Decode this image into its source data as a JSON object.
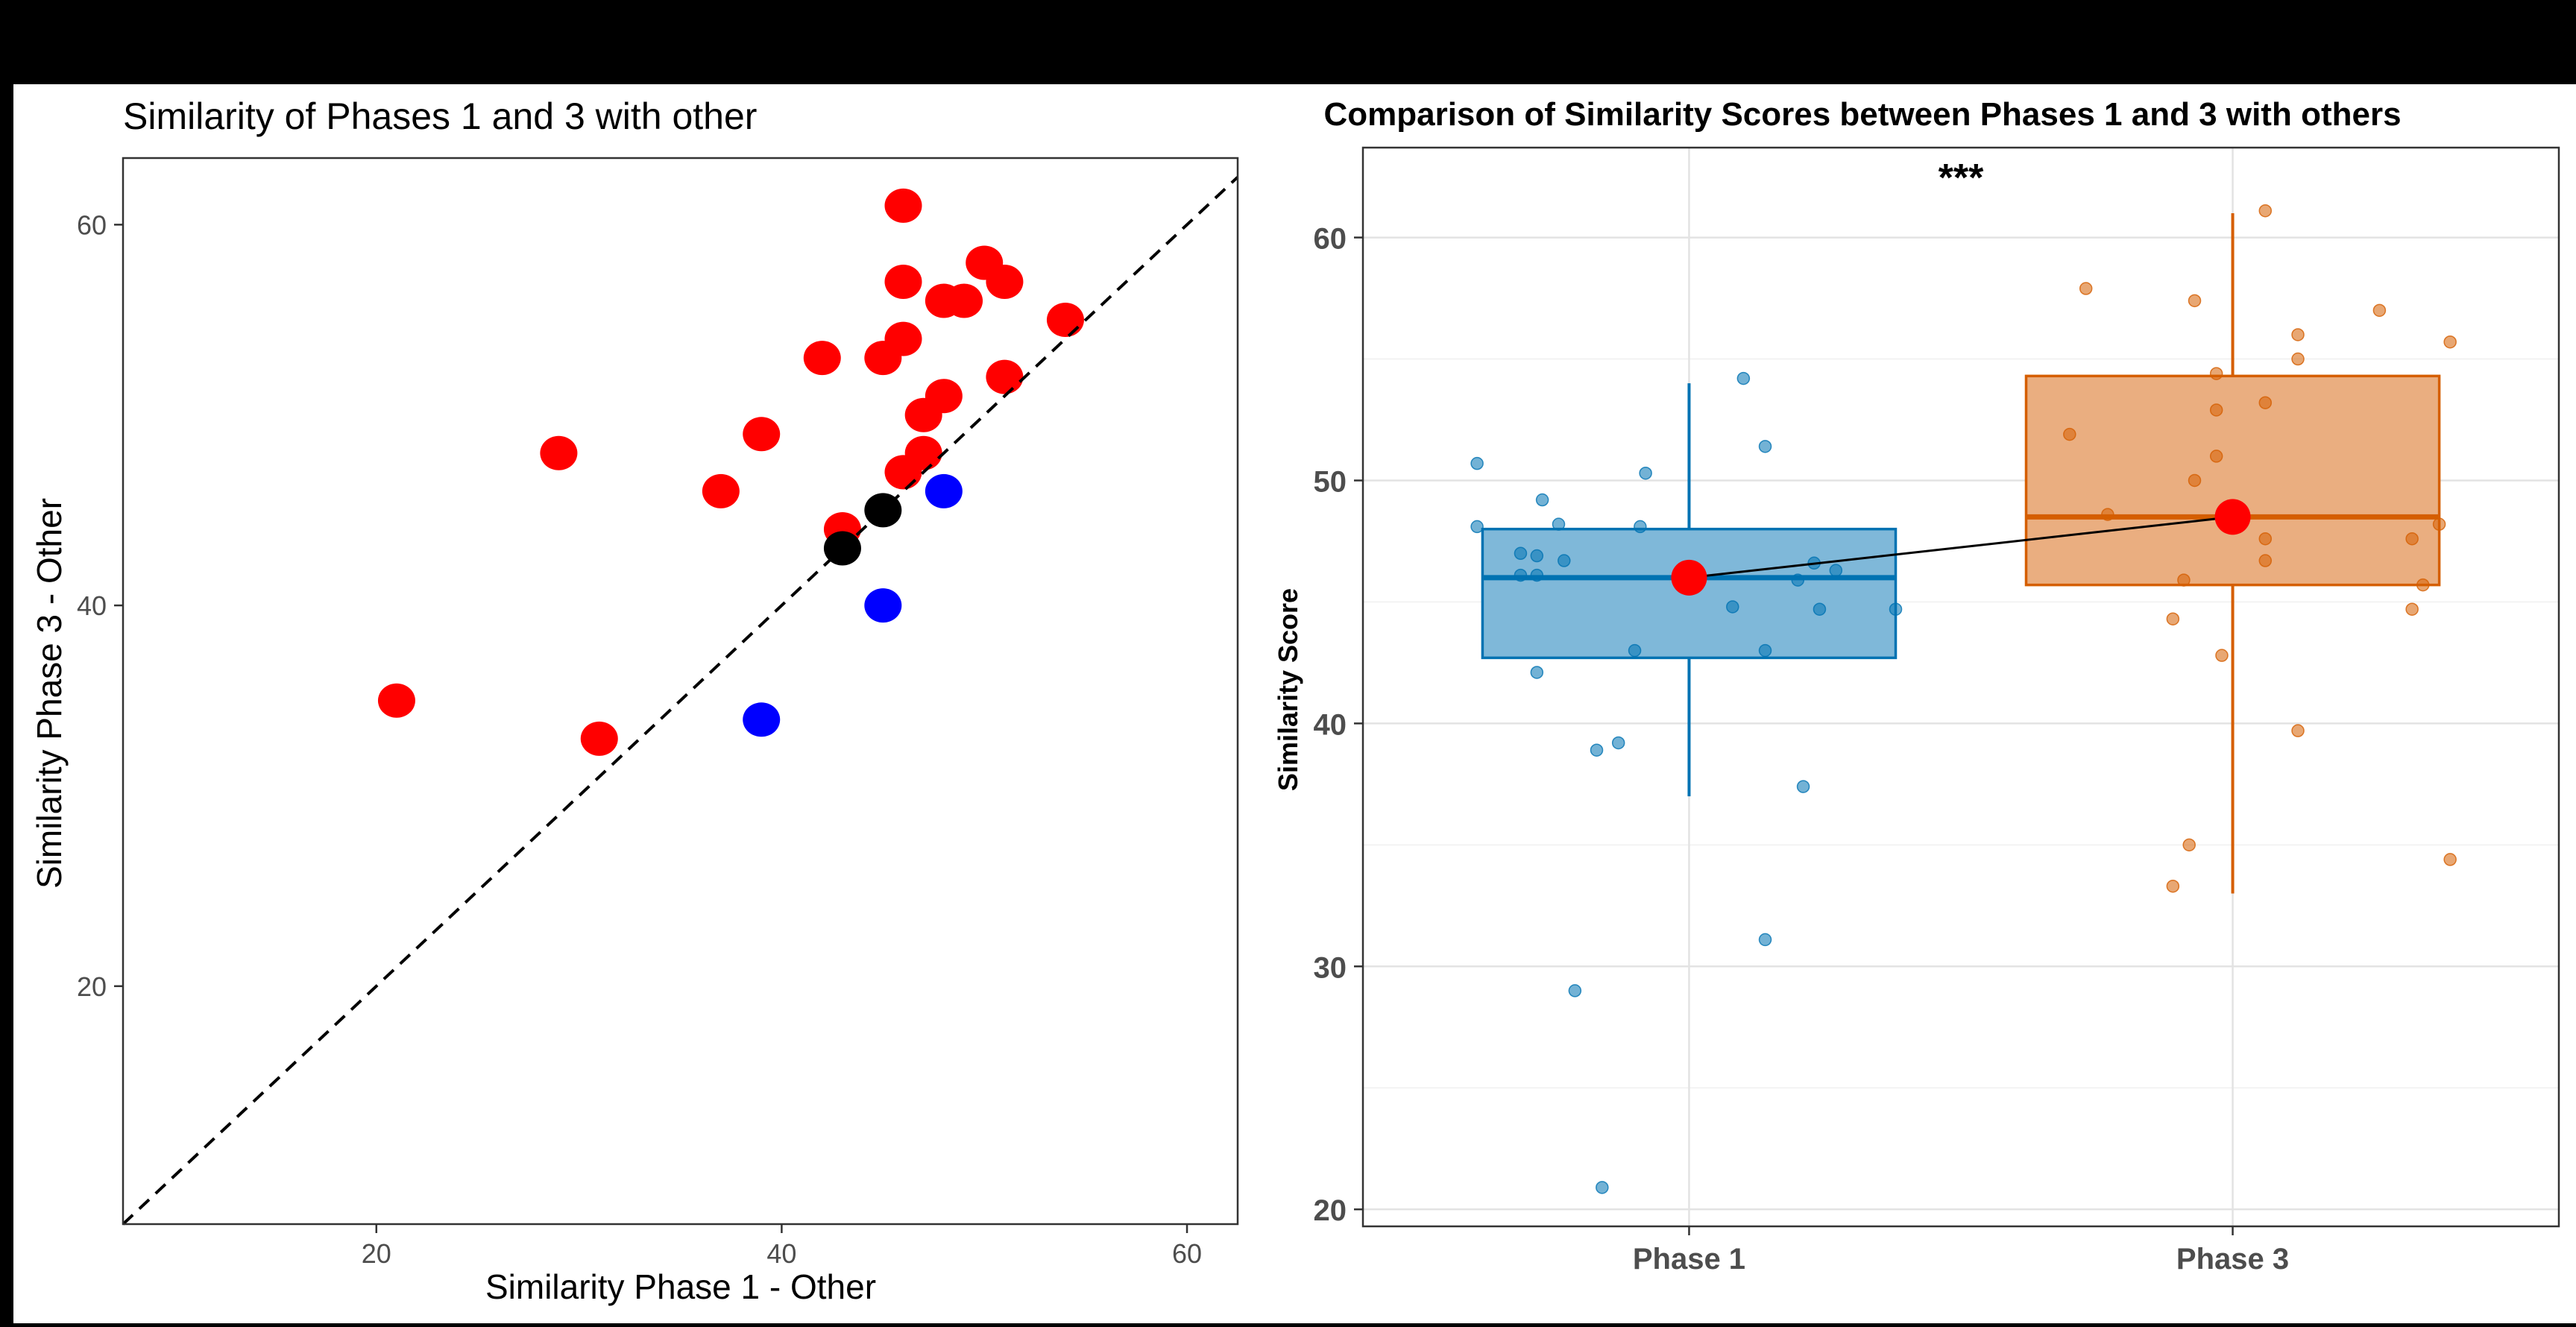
{
  "chart_data": [
    {
      "type": "scatter",
      "title": "Similarity of Phases 1 and 3 with other",
      "xlabel": "Similarity Phase 1 - Other",
      "ylabel": "Similarity Phase 3 - Other",
      "xlim": [
        7.5,
        62.5
      ],
      "ylim": [
        7.5,
        63.5
      ],
      "xticks": [
        20,
        40,
        60
      ],
      "yticks": [
        20,
        40,
        60
      ],
      "reference_line": "y = x, dashed",
      "grid": false,
      "colors": {
        "above": "#ff0000",
        "below": "#0000ff",
        "equal": "#000000"
      },
      "points": [
        {
          "x": 21,
          "y": 35,
          "color": "#ff0000"
        },
        {
          "x": 29,
          "y": 48,
          "color": "#ff0000"
        },
        {
          "x": 31,
          "y": 33,
          "color": "#ff0000"
        },
        {
          "x": 37,
          "y": 46,
          "color": "#ff0000"
        },
        {
          "x": 39,
          "y": 49,
          "color": "#ff0000"
        },
        {
          "x": 42,
          "y": 53,
          "color": "#ff0000"
        },
        {
          "x": 43,
          "y": 44,
          "color": "#ff0000"
        },
        {
          "x": 45,
          "y": 53,
          "color": "#ff0000"
        },
        {
          "x": 46,
          "y": 61,
          "color": "#ff0000"
        },
        {
          "x": 46,
          "y": 57,
          "color": "#ff0000"
        },
        {
          "x": 46,
          "y": 54,
          "color": "#ff0000"
        },
        {
          "x": 46,
          "y": 47,
          "color": "#ff0000"
        },
        {
          "x": 47,
          "y": 50,
          "color": "#ff0000"
        },
        {
          "x": 47,
          "y": 48,
          "color": "#ff0000"
        },
        {
          "x": 48,
          "y": 56,
          "color": "#ff0000"
        },
        {
          "x": 48,
          "y": 51,
          "color": "#ff0000"
        },
        {
          "x": 49,
          "y": 56,
          "color": "#ff0000"
        },
        {
          "x": 50,
          "y": 58,
          "color": "#ff0000"
        },
        {
          "x": 51,
          "y": 57,
          "color": "#ff0000"
        },
        {
          "x": 51,
          "y": 52,
          "color": "#ff0000"
        },
        {
          "x": 54,
          "y": 55,
          "color": "#ff0000"
        },
        {
          "x": 39,
          "y": 34,
          "color": "#0000ff"
        },
        {
          "x": 45,
          "y": 40,
          "color": "#0000ff"
        },
        {
          "x": 48,
          "y": 46,
          "color": "#0000ff"
        },
        {
          "x": 43,
          "y": 43,
          "color": "#000000"
        },
        {
          "x": 45,
          "y": 45,
          "color": "#000000"
        }
      ]
    },
    {
      "type": "box",
      "title": "Comparison of Similarity Scores between Phases 1 and 3 with others",
      "xlabel": "",
      "ylabel": "Similarity Score",
      "ylim": [
        19.3,
        63.7
      ],
      "yticks": [
        20,
        30,
        40,
        50,
        60
      ],
      "grid": true,
      "annotation": "***",
      "categories": [
        "Phase 1",
        "Phase 3"
      ],
      "boxes": [
        {
          "category": "Phase 1",
          "min": 37,
          "q1": 42.7,
          "median": 46,
          "q3": 48,
          "max": 54,
          "mean": 46,
          "color": "#0072B2"
        },
        {
          "category": "Phase 3",
          "min": 33,
          "q1": 45.7,
          "median": 48.5,
          "q3": 54.3,
          "max": 61,
          "mean": 48.5,
          "color": "#D55E00"
        }
      ],
      "mean_point_color": "#ff0000",
      "jitter_points": [
        {
          "category": "Phase 1",
          "offset": -0.39,
          "y": 50.7
        },
        {
          "category": "Phase 1",
          "offset": -0.39,
          "y": 48.1
        },
        {
          "category": "Phase 1",
          "offset": -0.27,
          "y": 49.2
        },
        {
          "category": "Phase 1",
          "offset": -0.24,
          "y": 48.2
        },
        {
          "category": "Phase 1",
          "offset": -0.31,
          "y": 47.0
        },
        {
          "category": "Phase 1",
          "offset": -0.28,
          "y": 46.9
        },
        {
          "category": "Phase 1",
          "offset": -0.23,
          "y": 46.7
        },
        {
          "category": "Phase 1",
          "offset": -0.31,
          "y": 46.1
        },
        {
          "category": "Phase 1",
          "offset": -0.28,
          "y": 46.1
        },
        {
          "category": "Phase 1",
          "offset": -0.28,
          "y": 42.1
        },
        {
          "category": "Phase 1",
          "offset": -0.08,
          "y": 50.3
        },
        {
          "category": "Phase 1",
          "offset": -0.09,
          "y": 48.1
        },
        {
          "category": "Phase 1",
          "offset": -0.1,
          "y": 43.0
        },
        {
          "category": "Phase 1",
          "offset": 0.1,
          "y": 54.2
        },
        {
          "category": "Phase 1",
          "offset": 0.14,
          "y": 51.4
        },
        {
          "category": "Phase 1",
          "offset": 0.23,
          "y": 46.6
        },
        {
          "category": "Phase 1",
          "offset": 0.27,
          "y": 46.3
        },
        {
          "category": "Phase 1",
          "offset": 0.2,
          "y": 45.9
        },
        {
          "category": "Phase 1",
          "offset": 0.08,
          "y": 44.8
        },
        {
          "category": "Phase 1",
          "offset": 0.24,
          "y": 44.7
        },
        {
          "category": "Phase 1",
          "offset": 0.14,
          "y": 43.0
        },
        {
          "category": "Phase 1",
          "offset": 0.38,
          "y": 44.7
        },
        {
          "category": "Phase 1",
          "offset": -0.13,
          "y": 39.2
        },
        {
          "category": "Phase 1",
          "offset": -0.17,
          "y": 38.9
        },
        {
          "category": "Phase 1",
          "offset": 0.21,
          "y": 37.4
        },
        {
          "category": "Phase 1",
          "offset": 0.14,
          "y": 31.1
        },
        {
          "category": "Phase 1",
          "offset": -0.21,
          "y": 29.0
        },
        {
          "category": "Phase 1",
          "offset": -0.16,
          "y": 20.9
        },
        {
          "category": "Phase 3",
          "offset": -0.27,
          "y": 57.9
        },
        {
          "category": "Phase 3",
          "offset": -0.3,
          "y": 51.9
        },
        {
          "category": "Phase 3",
          "offset": -0.23,
          "y": 48.6
        },
        {
          "category": "Phase 3",
          "offset": -0.07,
          "y": 57.4
        },
        {
          "category": "Phase 3",
          "offset": -0.03,
          "y": 54.4
        },
        {
          "category": "Phase 3",
          "offset": -0.03,
          "y": 52.9
        },
        {
          "category": "Phase 3",
          "offset": 0.06,
          "y": 53.2
        },
        {
          "category": "Phase 3",
          "offset": -0.03,
          "y": 51.0
        },
        {
          "category": "Phase 3",
          "offset": -0.07,
          "y": 50.0
        },
        {
          "category": "Phase 3",
          "offset": 0.06,
          "y": 47.6
        },
        {
          "category": "Phase 3",
          "offset": 0.06,
          "y": 46.7
        },
        {
          "category": "Phase 3",
          "offset": -0.09,
          "y": 45.9
        },
        {
          "category": "Phase 3",
          "offset": -0.11,
          "y": 44.3
        },
        {
          "category": "Phase 3",
          "offset": -0.02,
          "y": 42.8
        },
        {
          "category": "Phase 3",
          "offset": 0.12,
          "y": 39.7
        },
        {
          "category": "Phase 3",
          "offset": -0.08,
          "y": 35.0
        },
        {
          "category": "Phase 3",
          "offset": -0.11,
          "y": 33.3
        },
        {
          "category": "Phase 3",
          "offset": 0.06,
          "y": 61.1
        },
        {
          "category": "Phase 3",
          "offset": 0.12,
          "y": 56.0
        },
        {
          "category": "Phase 3",
          "offset": 0.12,
          "y": 55.0
        },
        {
          "category": "Phase 3",
          "offset": 0.27,
          "y": 57.0
        },
        {
          "category": "Phase 3",
          "offset": 0.4,
          "y": 55.7
        },
        {
          "category": "Phase 3",
          "offset": 0.38,
          "y": 48.2
        },
        {
          "category": "Phase 3",
          "offset": 0.33,
          "y": 47.6
        },
        {
          "category": "Phase 3",
          "offset": 0.35,
          "y": 45.7
        },
        {
          "category": "Phase 3",
          "offset": 0.33,
          "y": 44.7
        },
        {
          "category": "Phase 3",
          "offset": 0.4,
          "y": 34.4
        }
      ]
    }
  ]
}
